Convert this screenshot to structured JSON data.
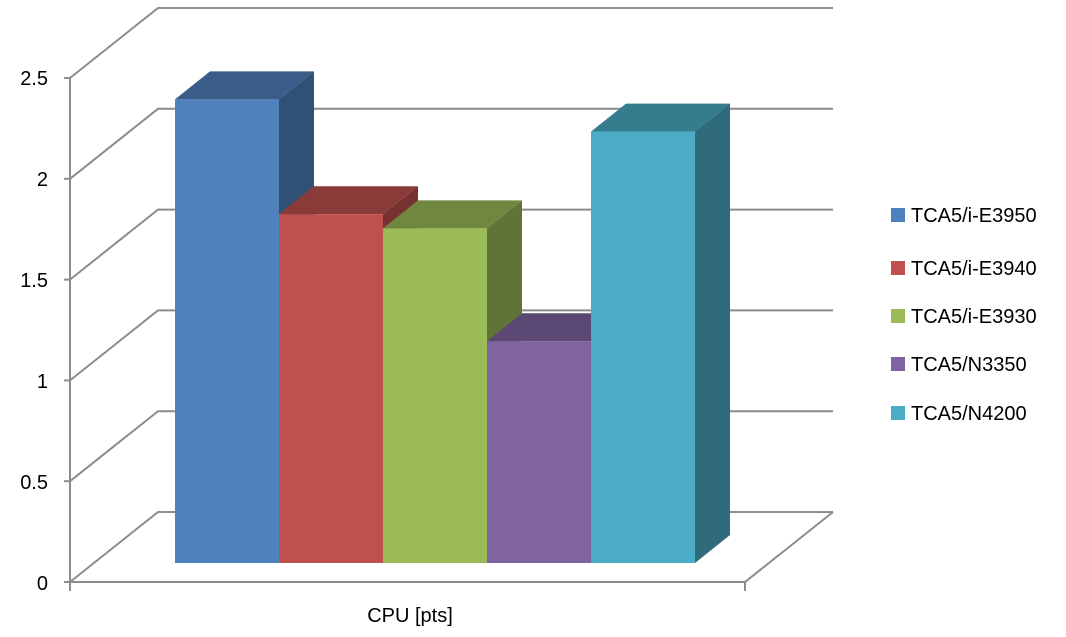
{
  "chart_data": {
    "type": "bar",
    "categories": [
      "CPU [pts]"
    ],
    "series": [
      {
        "name": "TCA5/i-E3950",
        "values": [
          2.3
        ],
        "color": "#4F81BD"
      },
      {
        "name": "TCA5/i-E3940",
        "values": [
          1.73
        ],
        "color": "#C0504D"
      },
      {
        "name": "TCA5/i-E3930",
        "values": [
          1.66
        ],
        "color": "#9BBB59"
      },
      {
        "name": "TCA5/N3350",
        "values": [
          1.1
        ],
        "color": "#8064A2"
      },
      {
        "name": "TCA5/N4200",
        "values": [
          2.14
        ],
        "color": "#4BACC6"
      }
    ],
    "yticks": [
      "0",
      "0.5",
      "1",
      "1.5",
      "2",
      "2.5"
    ],
    "ylim": [
      0,
      2.5
    ],
    "grid": true,
    "three_d": true,
    "legend_position": "right"
  }
}
